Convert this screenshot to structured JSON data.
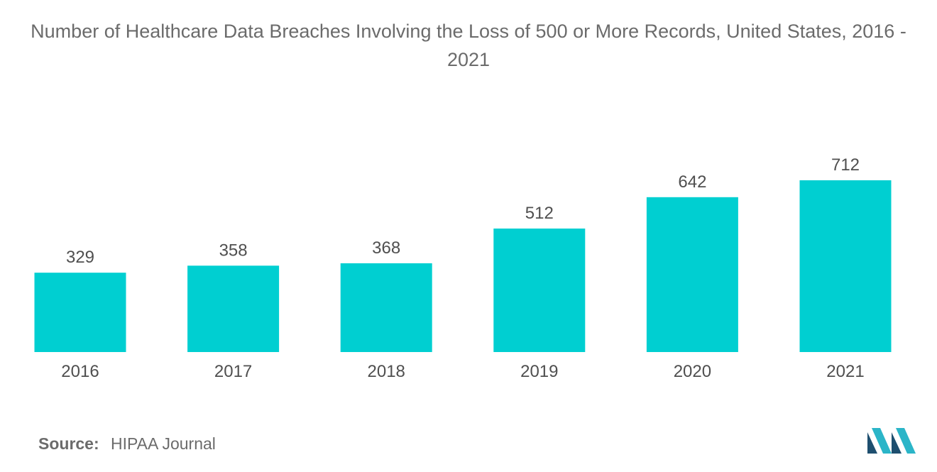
{
  "chart_data": {
    "type": "bar",
    "title": "Number of Healthcare Data Breaches Involving the Loss of 500 or More Records, United States, 2016 - 2021",
    "categories": [
      "2016",
      "2017",
      "2018",
      "2019",
      "2020",
      "2021"
    ],
    "values": [
      329,
      358,
      368,
      512,
      642,
      712
    ],
    "xlabel": "",
    "ylabel": "",
    "ylim": [
      0,
      712
    ],
    "grid": false,
    "legend": "none",
    "bar_color": "#00cfd1"
  },
  "source": {
    "label": "Source:",
    "text": "HIPAA Journal"
  },
  "logo": {
    "icon": "mordor-intelligence-logo-icon",
    "colors": [
      "#1e4f6f",
      "#2bb5c8"
    ]
  }
}
